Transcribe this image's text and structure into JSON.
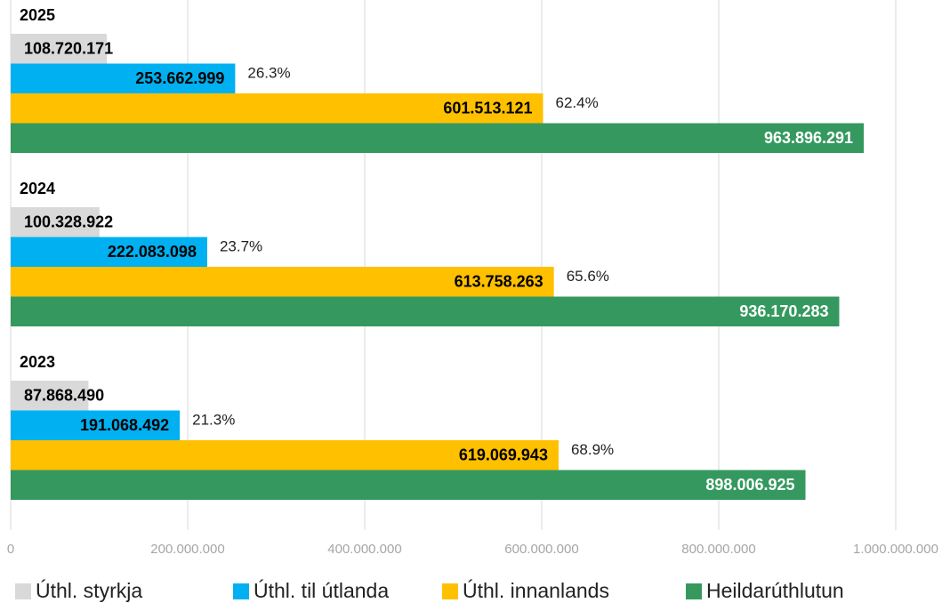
{
  "chart_data": {
    "type": "barh",
    "categories": [
      "2025",
      "2024",
      "2023"
    ],
    "series": [
      {
        "name": "Úthl. styrkja",
        "color": "#d9d9d9",
        "values": [
          108720171,
          100328922,
          87868490
        ],
        "value_labels": [
          "108.720.171",
          "100.328.922",
          "87.868.490"
        ]
      },
      {
        "name": "Úthl. til útlanda",
        "color": "#00b0f0",
        "values": [
          253662999,
          222083098,
          191068492
        ],
        "value_labels": [
          "253.662.999",
          "222.083.098",
          "191.068.492"
        ],
        "share_labels": [
          "26.3%",
          "23.7%",
          "21.3%"
        ]
      },
      {
        "name": "Úthl. innanlands",
        "color": "#ffc000",
        "values": [
          601513121,
          613758263,
          619069943
        ],
        "value_labels": [
          "601.513.121",
          "613.758.263",
          "619.069.943"
        ],
        "share_labels": [
          "62.4%",
          "65.6%",
          "68.9%"
        ]
      },
      {
        "name": "Heildarúthlutun",
        "color": "#35995f",
        "values": [
          963896291,
          936170283,
          898006925
        ],
        "value_labels": [
          "963.896.291",
          "936.170.283",
          "898.006.925"
        ]
      }
    ],
    "xlim": [
      0,
      1000000000
    ],
    "xticks": [
      0,
      {
        "value": 200000000,
        "label": "200.000.000"
      },
      {
        "value": 400000000,
        "label": "400.000.000"
      },
      {
        "value": 600000000,
        "label": "600.000.000"
      },
      {
        "value": 800000000,
        "label": "800.000.000"
      },
      {
        "value": 1000000000,
        "label": "1.000.000.000"
      }
    ],
    "grid": true,
    "legend": "bottom"
  }
}
